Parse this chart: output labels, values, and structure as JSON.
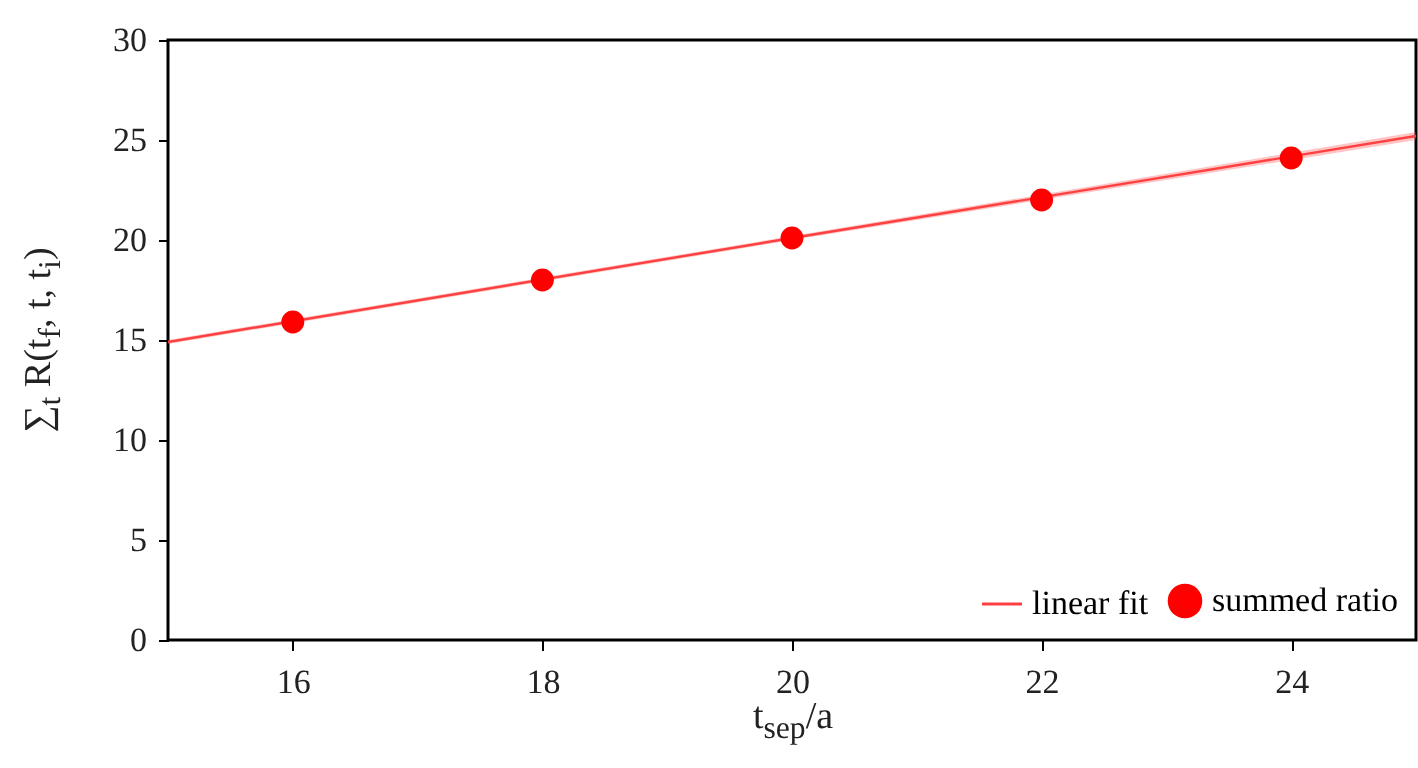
{
  "chart_data": {
    "type": "scatter",
    "xlabel": "t$_{sep}$/a",
    "ylabel": "∑$_{t}$ R(t$_{f}$, t, t$_{i}$)",
    "xlim": [
      15,
      25
    ],
    "ylim": [
      0,
      30
    ],
    "xticks": [
      16,
      18,
      20,
      22,
      24
    ],
    "yticks": [
      0,
      5,
      10,
      15,
      20,
      25,
      30
    ],
    "legend": "bottom right",
    "grid": false,
    "series": [
      {
        "name": "linear fit",
        "type": "line",
        "color": "#ff4040",
        "x": [
          15,
          20,
          25
        ],
        "values": [
          14.9,
          20.1,
          25.2
        ],
        "lower": [
          14.8,
          20.0,
          25.0
        ],
        "upper": [
          15.0,
          20.2,
          25.4
        ]
      },
      {
        "name": "summed ratio",
        "marker": "circle",
        "color": "#ff0000",
        "x": [
          16,
          18,
          20,
          22,
          24
        ],
        "values": [
          15.9,
          18.0,
          20.1,
          22.0,
          24.1
        ]
      }
    ]
  }
}
